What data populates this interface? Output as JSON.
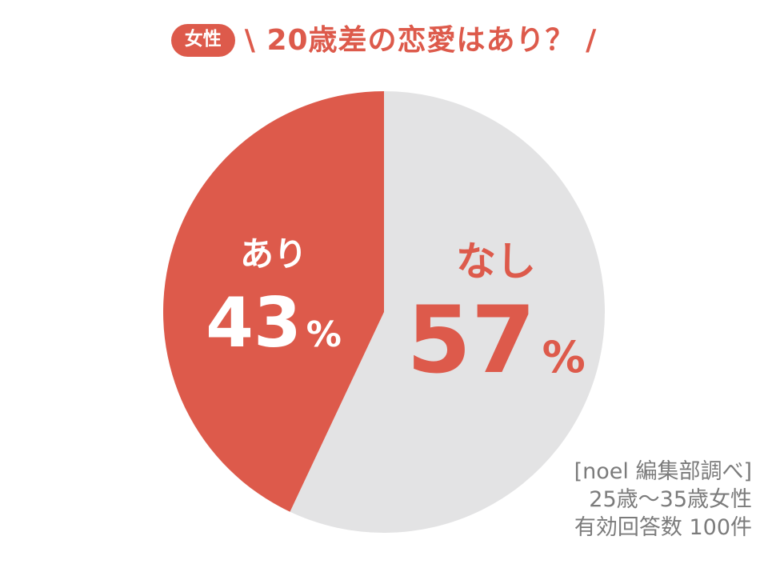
{
  "chart_data": {
    "type": "pie",
    "badge": "女性",
    "title": "\\ 20歳差の恋愛はあり？ /",
    "start_angle_deg": -90,
    "direction": "clockwise",
    "slices": [
      {
        "label": "なし",
        "value": 57,
        "unit": "%",
        "color": "#E3E3E4",
        "label_color": "#DD5A4B"
      },
      {
        "label": "あり",
        "value": 43,
        "unit": "%",
        "color": "#DD5A4B",
        "label_color": "#FFFFFF"
      }
    ],
    "total": 100,
    "legend_position": "inside",
    "source_note": [
      "[noel 編集部調べ]",
      "25歳〜35歳女性",
      "有効回答数 100件"
    ],
    "colors": {
      "accent_red": "#DD5A4B",
      "slice_gray": "#E3E3E4",
      "note_gray": "#7B7B7B",
      "background": "#FFFFFF"
    }
  }
}
